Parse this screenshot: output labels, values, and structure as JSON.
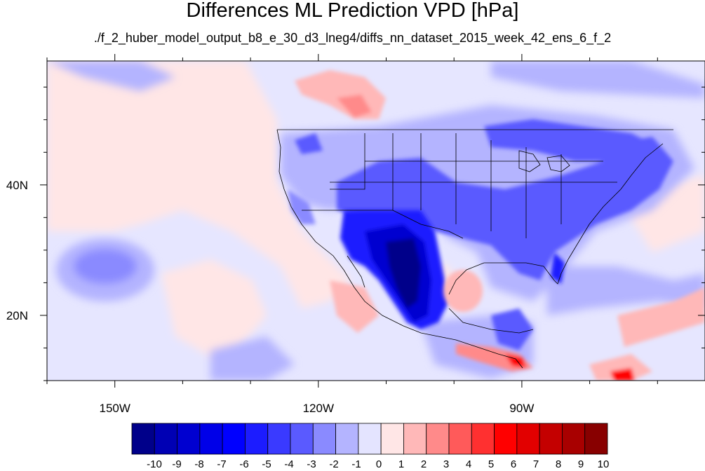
{
  "title": "Differences ML Prediction VPD [hPa]",
  "subtitle": "./f_2_huber_model_output_b8_e_30_d3_lneg4/diffs_nn_dataset_2015_week_42_ens_6_f_2",
  "map": {
    "lon_range": [
      -160,
      -63
    ],
    "lat_range": [
      10,
      59
    ],
    "lon_ticks": [
      {
        "lon": -150,
        "label": "150W"
      },
      {
        "lon": -120,
        "label": "120W"
      },
      {
        "lon": -90,
        "label": "90W"
      }
    ],
    "lat_ticks": [
      {
        "lat": 40,
        "label": "40N"
      },
      {
        "lat": 20,
        "label": "20N"
      }
    ],
    "background_value": -0.5
  },
  "colorbar": {
    "labels": [
      "-10",
      "-9",
      "-8",
      "-7",
      "-6",
      "-5",
      "-4",
      "-3",
      "-2",
      "-1",
      "0",
      "1",
      "2",
      "3",
      "4",
      "5",
      "6",
      "7",
      "8",
      "9",
      "10"
    ],
    "colors": [
      "#00008a",
      "#0000b4",
      "#0000d0",
      "#0000e8",
      "#0000ff",
      "#1c1cff",
      "#3a3aff",
      "#5a5aff",
      "#8a8aff",
      "#b4b4ff",
      "#e4e4ff",
      "#ffe6e6",
      "#ffb8b8",
      "#ff8a8a",
      "#ff5a5a",
      "#ff3030",
      "#ff0000",
      "#e20000",
      "#c40000",
      "#a80000",
      "#880000"
    ]
  }
}
